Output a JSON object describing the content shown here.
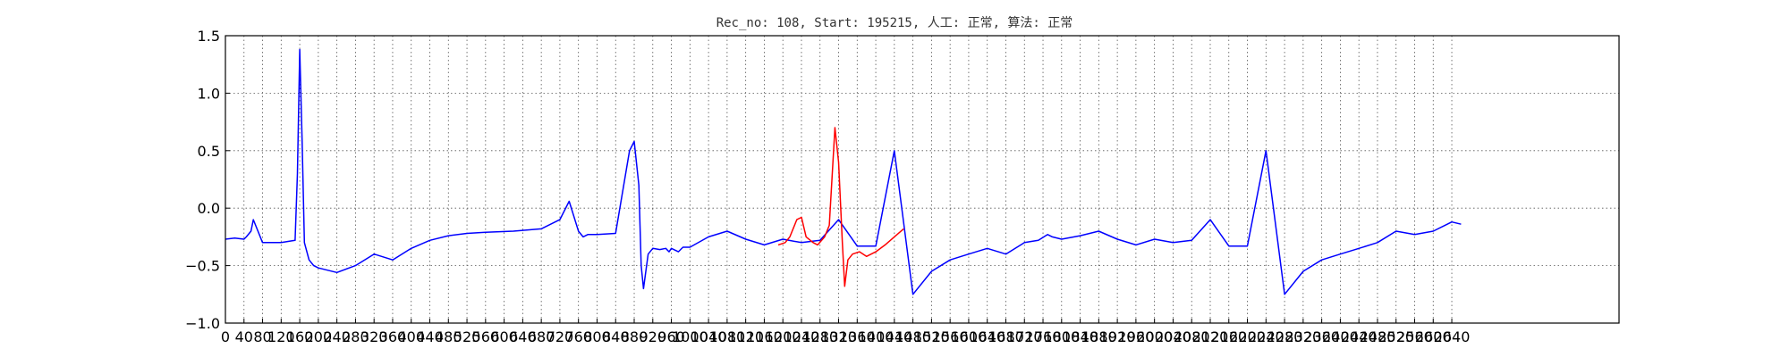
{
  "chart_data": {
    "type": "line",
    "title": "Rec_no: 108, Start: 195215, 人工: 正常, 算法: 正常",
    "xlabel": "",
    "ylabel": "",
    "xlim": [
      0,
      3000
    ],
    "ylim": [
      -1.0,
      1.5
    ],
    "grid": true,
    "xticks": [
      0,
      40,
      80,
      120,
      160,
      200,
      240,
      280,
      320,
      360,
      400,
      440,
      480,
      520,
      560,
      600,
      640,
      680,
      720,
      760,
      800,
      840,
      880,
      920,
      960,
      1000,
      1040,
      1080,
      1120,
      1160,
      1200,
      1240,
      1280,
      1320,
      1360,
      1400,
      1440,
      1480,
      1520,
      1560,
      1600,
      1640,
      1680,
      1720,
      1760,
      1800,
      1840,
      1880,
      1920,
      1960,
      2000,
      2040,
      2080,
      2120,
      2160,
      2200,
      2240,
      2280,
      2320,
      2360,
      2400,
      2440,
      2480,
      2520,
      2560,
      2600,
      2640
    ],
    "yticks": [
      -1.0,
      -0.5,
      0.0,
      0.5,
      1.0,
      1.5
    ],
    "ytick_labels": [
      "−1.0",
      "−0.5",
      "0.0",
      "0.5",
      "1.0",
      "1.5"
    ],
    "colors": {
      "normal": "#0000ff",
      "highlight": "#ff0000"
    },
    "series": [
      {
        "color": "#0000ff",
        "x": [
          0,
          20,
          40,
          45,
          55,
          60,
          70,
          80,
          100,
          120,
          150,
          155,
          160,
          165,
          170,
          180,
          190,
          200,
          240,
          280,
          320,
          360,
          400,
          440,
          480,
          520,
          560,
          620,
          680,
          720,
          740,
          760,
          770,
          780,
          800,
          840,
          870,
          880,
          890,
          895,
          900,
          905,
          910,
          920,
          935,
          948,
          955,
          960,
          975,
          985,
          1000,
          1040,
          1080,
          1120,
          1160,
          1200,
          1240,
          1280,
          1320,
          1360,
          1400,
          1440,
          1480,
          1520,
          1560,
          1600,
          1640,
          1680,
          1720,
          1750,
          1770,
          1780,
          1800,
          1840,
          1880,
          1920,
          1960,
          2000,
          2040,
          2080,
          2120,
          2160,
          2200,
          2240,
          2280,
          2320,
          2360,
          2400,
          2440,
          2480,
          2520,
          2560,
          2600,
          2640,
          2660
        ],
        "y": [
          -0.27,
          -0.26,
          -0.27,
          -0.25,
          -0.2,
          -0.1,
          -0.2,
          -0.3,
          -0.3,
          -0.3,
          -0.28,
          0.3,
          1.38,
          0.6,
          -0.3,
          -0.45,
          -0.5,
          -0.52,
          -0.56,
          -0.5,
          -0.4,
          -0.45,
          -0.35,
          -0.28,
          -0.24,
          -0.22,
          -0.21,
          -0.2,
          -0.18,
          -0.1,
          0.06,
          -0.2,
          -0.25,
          -0.23,
          -0.23,
          -0.22,
          0.5,
          0.58,
          0.2,
          -0.5,
          -0.7,
          -0.55,
          -0.4,
          -0.35,
          -0.36,
          -0.35,
          -0.38,
          -0.35,
          -0.38,
          -0.34,
          -0.34,
          -0.25,
          -0.2,
          -0.27,
          -0.32,
          -0.27,
          -0.3,
          -0.28,
          -0.1,
          -0.33,
          -0.33,
          0.5,
          -0.75,
          -0.55,
          -0.45,
          -0.4,
          -0.35,
          -0.4,
          -0.3,
          -0.28,
          -0.23,
          -0.25,
          -0.27,
          -0.24,
          -0.2,
          -0.27,
          -0.32,
          -0.27,
          -0.3,
          -0.28,
          -0.1,
          -0.33,
          -0.33,
          0.5,
          -0.75,
          -0.55,
          -0.45,
          -0.4,
          -0.35,
          -0.3,
          -0.2,
          -0.23,
          -0.2,
          -0.12,
          -0.14
        ]
      },
      {
        "color": "#ff0000",
        "x": [
          1190,
          1205,
          1215,
          1230,
          1240,
          1250,
          1265,
          1275,
          1290,
          1300,
          1312,
          1320,
          1328,
          1333,
          1340,
          1350,
          1365,
          1380,
          1400,
          1420,
          1440,
          1460
        ],
        "y": [
          -0.32,
          -0.3,
          -0.25,
          -0.1,
          -0.08,
          -0.25,
          -0.3,
          -0.32,
          -0.25,
          -0.15,
          0.7,
          0.4,
          -0.3,
          -0.68,
          -0.45,
          -0.4,
          -0.38,
          -0.42,
          -0.38,
          -0.32,
          -0.25,
          -0.18
        ]
      }
    ]
  }
}
